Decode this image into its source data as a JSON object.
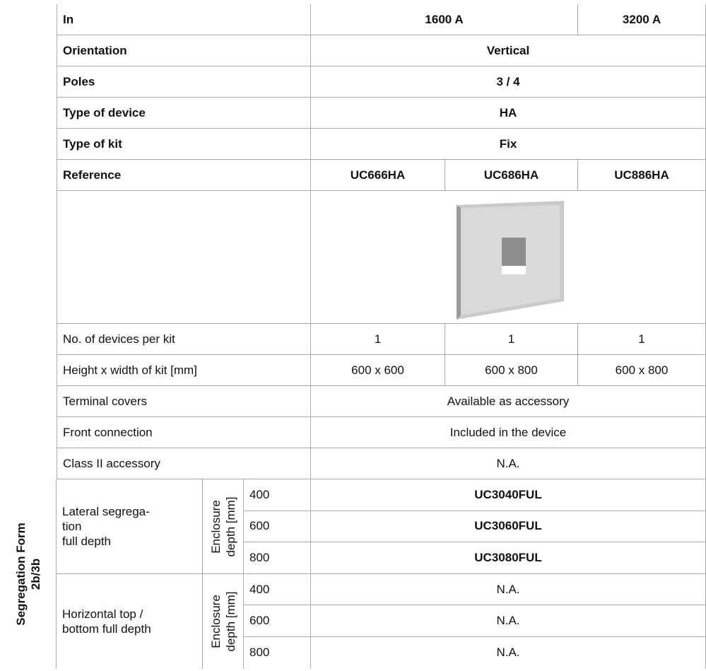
{
  "header_rows": [
    {
      "label": "In",
      "values": [
        "1600 A",
        "3200 A"
      ]
    },
    {
      "label": "Orientation",
      "values": [
        "Vertical"
      ]
    },
    {
      "label": "Poles",
      "values": [
        "3 / 4"
      ]
    },
    {
      "label": "Type of device",
      "values": [
        "HA"
      ]
    },
    {
      "label": "Type of kit",
      "values": [
        "Fix"
      ]
    },
    {
      "label": "Reference",
      "values": [
        "UC666HA",
        "UC686HA",
        "UC886HA"
      ]
    }
  ],
  "spec_rows": [
    {
      "label": "No. of devices per kit",
      "values": [
        "1",
        "1",
        "1"
      ]
    },
    {
      "label": "Height x width of kit [mm]",
      "values": [
        "600 x 600",
        "600 x 800",
        "600 x 800"
      ]
    },
    {
      "label": "Terminal covers",
      "values": [
        "Available as accessory"
      ]
    },
    {
      "label": "Front connection",
      "values": [
        "Included in the device"
      ]
    },
    {
      "label": "Class II accessory",
      "values": [
        "N.A."
      ]
    }
  ],
  "segregation": {
    "title": [
      "Segregation Form",
      "2b/3b"
    ],
    "groups": [
      {
        "label": [
          "Lateral segrega-",
          "tion",
          "full depth"
        ],
        "depth_label": [
          "Enclosure",
          "depth [mm]"
        ],
        "bold": true,
        "rows": [
          {
            "depth": "400",
            "value": "UC3040FUL"
          },
          {
            "depth": "600",
            "value": "UC3060FUL"
          },
          {
            "depth": "800",
            "value": "UC3080FUL"
          }
        ]
      },
      {
        "label": [
          "Horizontal top /",
          "bottom full depth"
        ],
        "depth_label": [
          "Enclosure",
          "depth [mm]"
        ],
        "bold": false,
        "rows": [
          {
            "depth": "400",
            "value": "N.A."
          },
          {
            "depth": "600",
            "value": "N.A."
          },
          {
            "depth": "800",
            "value": "N.A."
          }
        ]
      }
    ]
  }
}
